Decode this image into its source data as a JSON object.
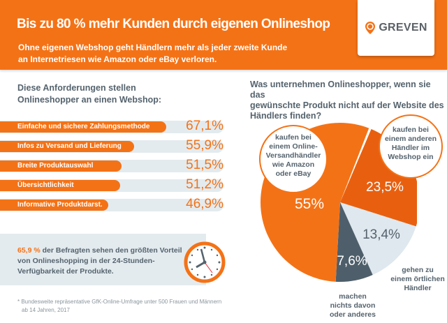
{
  "header": {
    "title": "Bis zu 80 % mehr Kunden durch eigenen Onlineshop",
    "subtitle_lines": [
      "Ohne eigenen Webshop geht Händlern mehr als jeder zweite Kunde",
      "an Internetriesen wie Amazon oder eBay verloren."
    ],
    "logo": "GREVEN"
  },
  "colors": {
    "orange": "#f47216",
    "dark_orange": "#e8600f",
    "light": "#dfe8ee",
    "slate": "#4e5f6b",
    "text": "#55636d"
  },
  "chart_data": [
    {
      "type": "bar",
      "title_lines": [
        "Diese Anforderungen stellen",
        "Onlineshopper an einen Webshop:"
      ],
      "categories": [
        "Einfache und sichere Zahlungsmethode",
        "Infos zu Versand und Lieferung",
        "Breite Produktauswahl",
        "Übersichtlichkeit",
        "Informative Produktdarst."
      ],
      "values": [
        67.1,
        55.9,
        51.5,
        51.2,
        46.9
      ],
      "labels": [
        "67,1%",
        "55,9%",
        "51,5%",
        "51,2%",
        "46,9%"
      ]
    },
    {
      "type": "pie",
      "title_lines": [
        "Was unternehmen Onlineshopper, wenn sie das",
        "gewünschte Produkt nicht auf der Website des",
        "Händlers finden?"
      ],
      "slices": [
        {
          "label_lines": [
            "kaufen bei",
            "einem anderen",
            "Händler im",
            "Webshop ein"
          ],
          "value": 23.5,
          "text": "23,5%",
          "color": "#e8600f"
        },
        {
          "label_lines": [
            "gehen zu",
            "einem örtlichen",
            "Händler"
          ],
          "value": 13.4,
          "text": "13,4%",
          "color": "#dfe8ee"
        },
        {
          "label_lines": [
            "machen",
            "nichts davon",
            "oder anderes"
          ],
          "value": 7.6,
          "text": "7,6%",
          "color": "#4e5f6b"
        },
        {
          "label_lines": [
            "kaufen bei",
            "einem Online-",
            "Versandhändler",
            "wie Amazon",
            "oder eBay"
          ],
          "value": 55,
          "text": "55%",
          "color": "#f47216"
        }
      ]
    }
  ],
  "info": {
    "highlight": "65,9 %",
    "text": " der Befragten sehen den größten Vorteil von Onlineshopping in der 24-Stunden-Verfügbarkeit der Produkte.",
    "icon": "clock-icon"
  },
  "footnote_lines": [
    "* Bundesweite repräsentative GfK-Online-Umfrage unter 500 Frauen und Männern",
    "ab 14 Jahren, 2017"
  ]
}
